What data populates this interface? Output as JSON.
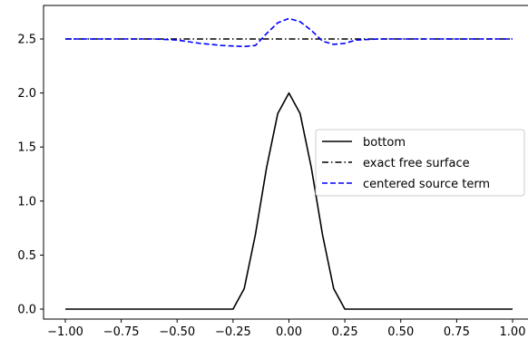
{
  "chart_data": {
    "type": "line",
    "xlim": [
      -1.0,
      1.0
    ],
    "ylim": [
      -0.1,
      2.85
    ],
    "xticks": [
      -1.0,
      -0.75,
      -0.5,
      -0.25,
      0.0,
      0.25,
      0.5,
      0.75,
      1.0
    ],
    "xtick_labels": [
      "−1.00",
      "−0.75",
      "−0.50",
      "−0.25",
      "0.00",
      "0.25",
      "0.50",
      "0.75",
      "1.00"
    ],
    "yticks": [
      0.0,
      0.5,
      1.0,
      1.5,
      2.0,
      2.5
    ],
    "ytick_labels": [
      "0.0",
      "0.5",
      "1.0",
      "1.5",
      "2.0",
      "2.5"
    ],
    "grid": false,
    "legend_position": "center-right",
    "series": [
      {
        "name": "bottom",
        "style": "solid",
        "color": "#000000",
        "x": [
          -1.0,
          -0.75,
          -0.5,
          -0.3,
          -0.25,
          -0.2,
          -0.15,
          -0.1,
          -0.05,
          0.0,
          0.05,
          0.1,
          0.15,
          0.2,
          0.25,
          0.3,
          0.5,
          0.75,
          1.0
        ],
        "y": [
          0.0,
          0.0,
          0.0,
          0.0,
          0.0,
          0.19,
          0.69,
          1.31,
          1.81,
          2.0,
          1.81,
          1.31,
          0.69,
          0.19,
          0.0,
          0.0,
          0.0,
          0.0,
          0.0
        ]
      },
      {
        "name": "exact free surface",
        "style": "dashdot",
        "color": "#000000",
        "x": [
          -1.0,
          1.0
        ],
        "y": [
          2.5,
          2.5
        ]
      },
      {
        "name": "centered source term",
        "style": "dashed",
        "color": "#0000ff",
        "x": [
          -1.0,
          -0.75,
          -0.6,
          -0.5,
          -0.4,
          -0.3,
          -0.2,
          -0.15,
          -0.1,
          -0.05,
          0.0,
          0.05,
          0.1,
          0.15,
          0.2,
          0.25,
          0.3,
          0.4,
          0.5,
          0.75,
          1.0
        ],
        "y": [
          2.5,
          2.5,
          2.5,
          2.49,
          2.46,
          2.44,
          2.43,
          2.44,
          2.55,
          2.65,
          2.69,
          2.66,
          2.58,
          2.48,
          2.45,
          2.46,
          2.49,
          2.5,
          2.5,
          2.5,
          2.5
        ]
      }
    ]
  }
}
